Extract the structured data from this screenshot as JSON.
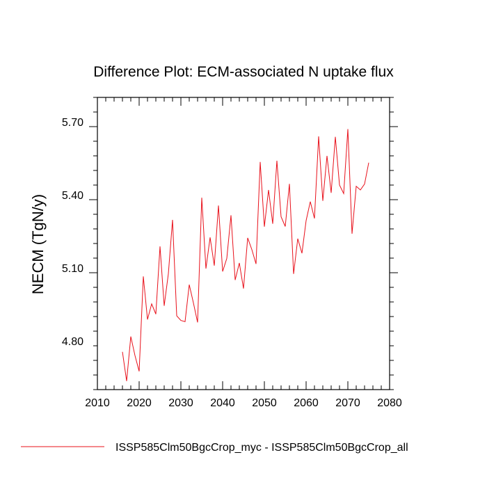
{
  "chart_data": {
    "type": "line",
    "title": "Difference Plot: ECM-associated N uptake flux",
    "xlabel": "",
    "ylabel": "NECM  (TgN/y)",
    "xlim": [
      2010,
      2080
    ],
    "ylim": [
      4.6,
      5.8
    ],
    "x_ticks": [
      2010,
      2020,
      2030,
      2040,
      2050,
      2060,
      2070,
      2080
    ],
    "x_tick_labels": [
      "2010",
      "2020",
      "2030",
      "2040",
      "2050",
      "2060",
      "2070",
      "2080"
    ],
    "y_ticks": [
      4.8,
      5.1,
      5.4,
      5.7
    ],
    "y_tick_labels": [
      "4.80",
      "5.10",
      "5.40",
      "5.70"
    ],
    "grid": false,
    "legend_position": "bottom",
    "series": [
      {
        "name": "ISSP585Clm50BgcCrop_myc - ISSP585Clm50BgcCrop_all",
        "color": "#e8101a",
        "x": [
          2016,
          2017,
          2018,
          2019,
          2020,
          2021,
          2022,
          2023,
          2024,
          2025,
          2026,
          2027,
          2028,
          2029,
          2030,
          2031,
          2032,
          2033,
          2034,
          2035,
          2036,
          2037,
          2038,
          2039,
          2040,
          2041,
          2042,
          2043,
          2044,
          2045,
          2046,
          2047,
          2048,
          2049,
          2050,
          2051,
          2052,
          2053,
          2054,
          2055,
          2056,
          2057,
          2058,
          2059,
          2060,
          2061,
          2062,
          2063,
          2064,
          2065,
          2066,
          2067,
          2068,
          2069,
          2070,
          2071,
          2072,
          2073,
          2074,
          2075
        ],
        "y": [
          4.755,
          4.635,
          4.818,
          4.74,
          4.675,
          5.065,
          4.888,
          4.952,
          4.91,
          5.188,
          4.944,
          5.076,
          5.297,
          4.903,
          4.884,
          4.879,
          5.031,
          4.956,
          4.876,
          5.388,
          5.097,
          5.225,
          5.109,
          5.356,
          5.085,
          5.139,
          5.316,
          5.05,
          5.12,
          5.015,
          5.223,
          5.175,
          5.116,
          5.535,
          5.269,
          5.42,
          5.281,
          5.54,
          5.31,
          5.27,
          5.445,
          5.075,
          5.22,
          5.16,
          5.294,
          5.372,
          5.303,
          5.64,
          5.375,
          5.56,
          5.408,
          5.638,
          5.44,
          5.405,
          5.67,
          5.24,
          5.435,
          5.42,
          5.444,
          5.532
        ]
      }
    ]
  }
}
